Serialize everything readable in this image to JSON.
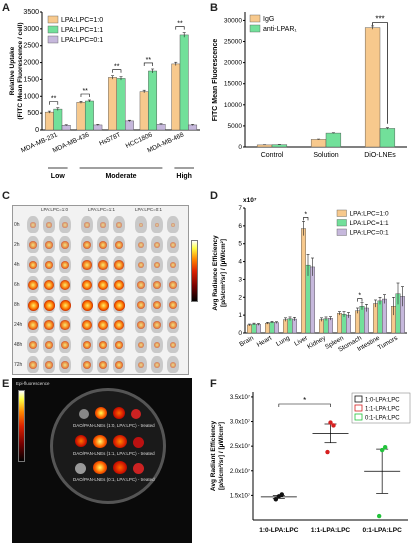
{
  "panels": {
    "A": {
      "label": "A"
    },
    "B": {
      "label": "B"
    },
    "C": {
      "label": "C"
    },
    "D": {
      "label": "D"
    },
    "E": {
      "label": "E"
    },
    "F": {
      "label": "F"
    }
  },
  "chart_data": [
    {
      "id": "A",
      "type": "bar",
      "ylabel_lines": [
        "Relative Uptake",
        "(FITC Mean Fluorescence / cell)"
      ],
      "categories": [
        "MDA-MB-231",
        "MDA-MB-436",
        "Hs578T",
        "HCC1806",
        "MDA-MB-468"
      ],
      "series": [
        {
          "name": "LPA:LPC=1:0",
          "color": "#f7c98d",
          "values": [
            530,
            820,
            1560,
            1140,
            1960
          ]
        },
        {
          "name": "LPA:LPC=1:1",
          "color": "#72e09a",
          "values": [
            620,
            860,
            1530,
            1750,
            2820
          ]
        },
        {
          "name": "LPA:LPC=0:1",
          "color": "#c6b8dc",
          "values": [
            140,
            150,
            270,
            170,
            150
          ]
        }
      ],
      "errors": [
        [
          30,
          30,
          50,
          40,
          50
        ],
        [
          40,
          30,
          50,
          60,
          70
        ],
        [
          15,
          15,
          20,
          15,
          15
        ]
      ],
      "yticks": [
        0,
        500,
        1000,
        1500,
        2000,
        2500,
        3000,
        3500
      ],
      "ylim": [
        0,
        3500
      ],
      "significance": [
        "**",
        "**",
        "**",
        "**",
        "**"
      ],
      "groups": [
        {
          "label": "Low",
          "from": 0,
          "to": 0
        },
        {
          "label": "Moderate",
          "from": 1,
          "to": 3
        },
        {
          "label": "High",
          "from": 4,
          "to": 4
        }
      ],
      "legend": "top-left"
    },
    {
      "id": "B",
      "type": "bar",
      "ylabel": "FITC Mean Fluorescence",
      "categories": [
        "Control",
        "Solution",
        "DiO-LNEs"
      ],
      "series": [
        {
          "name": "IgG",
          "color": "#f7c98d",
          "values": [
            500,
            1800,
            28300
          ]
        },
        {
          "name": "anti-LPAR₁",
          "color": "#72e09a",
          "values": [
            560,
            3300,
            4400
          ]
        }
      ],
      "errors": [
        [
          40,
          80,
          400
        ],
        [
          40,
          80,
          200
        ]
      ],
      "yticks": [
        0,
        5000,
        10000,
        15000,
        20000,
        25000,
        30000
      ],
      "ylim": [
        0,
        32000
      ],
      "significance": "***",
      "legend": "top-left"
    },
    {
      "id": "D",
      "type": "bar",
      "ylabel_lines": [
        "Avg Radiance Efficiency",
        "[p/s/cm²/sr] / [µW/cm²]"
      ],
      "y_multiplier": "x10⁷",
      "categories": [
        "Brain",
        "Heart",
        "Lung",
        "Liver",
        "Kidney",
        "Spleen",
        "Stomach",
        "Intestine",
        "Tumors"
      ],
      "series": [
        {
          "name": "LPA:LPC=1:0",
          "color": "#f7c98d",
          "values": [
            0.45,
            0.55,
            0.75,
            5.85,
            0.75,
            1.1,
            1.25,
            1.65,
            1.5
          ]
        },
        {
          "name": "LPA:LPC=1:1",
          "color": "#72e09a",
          "values": [
            0.5,
            0.6,
            0.8,
            3.8,
            0.8,
            1.05,
            1.5,
            1.8,
            2.2
          ]
        },
        {
          "name": "LPA:LPC=0:1",
          "color": "#c6b8dc",
          "values": [
            0.48,
            0.58,
            0.78,
            3.7,
            0.82,
            1.0,
            1.4,
            1.9,
            2.05
          ]
        }
      ],
      "errors": [
        [
          0.05,
          0.05,
          0.1,
          0.4,
          0.1,
          0.1,
          0.15,
          0.2,
          0.5
        ],
        [
          0.05,
          0.05,
          0.1,
          0.6,
          0.1,
          0.15,
          0.2,
          0.2,
          0.6
        ],
        [
          0.05,
          0.05,
          0.1,
          0.5,
          0.1,
          0.15,
          0.2,
          0.25,
          0.55
        ]
      ],
      "yticks": [
        0,
        1,
        2,
        3,
        4,
        5,
        6,
        7
      ],
      "ylim": [
        0,
        7
      ],
      "significance_marks": [
        {
          "category": 3,
          "text": "*"
        },
        {
          "category": 6,
          "text": "*"
        }
      ],
      "legend": "top-right"
    },
    {
      "id": "F",
      "type": "scatter",
      "ylabel_lines": [
        "Avg Radiant Efficiency",
        "[p/s/cm²/sr] / [µW/cm²]"
      ],
      "categories": [
        "1:0-LPA:LPC",
        "1:1-LPA:LPC",
        "0:1-LPA:LPC"
      ],
      "series": [
        {
          "name": "1:0-LPA:LPC",
          "color": "#111111",
          "values": [
            14200000.0,
            14800000.0,
            15200000.0
          ],
          "mean": 14700000.0,
          "sem": 300000.0
        },
        {
          "name": "1:1-LPA:LPC",
          "color": "#d62020",
          "values": [
            23800000.0,
            29800000.0,
            29200000.0
          ],
          "mean": 27600000.0,
          "sem": 1900000.0
        },
        {
          "name": "0:1-LPA:LPC",
          "color": "#22c33b",
          "values": [
            10800000.0,
            24200000.0,
            24800000.0
          ],
          "mean": 19900000.0,
          "sem": 4500000.0
        }
      ],
      "yticks": [
        15000000.0,
        20000000.0,
        25000000.0,
        30000000.0,
        35000000.0
      ],
      "ytick_labels": [
        "1.5x10⁷",
        "2.0x10⁷",
        "2.5x10⁷",
        "3.0x10⁷",
        "3.5x10⁷"
      ],
      "ylim": [
        10000000.0,
        36000000.0
      ],
      "significance": "*",
      "legend": "top-right"
    }
  ],
  "panelC": {
    "col_labels": [
      "LPA:LPC=1:0",
      "LPA:LPC=1:1",
      "LPA:LPC=0:1"
    ],
    "row_labels": [
      "0h",
      "2h",
      "4h",
      "6h",
      "8h",
      "24h",
      "48h",
      "72h"
    ]
  },
  "panelE": {
    "dish_labels": [
      "DAO/PAN-LNEs (1:0, LPA:LPC) - treated",
      "DAO/PAN-LNEs (1:1, LPA:LPC) - treated",
      "DAO/PAN-LNEs (0:1, LPA:LPC) - treated"
    ],
    "top_text": "Epi-fluorescence"
  }
}
